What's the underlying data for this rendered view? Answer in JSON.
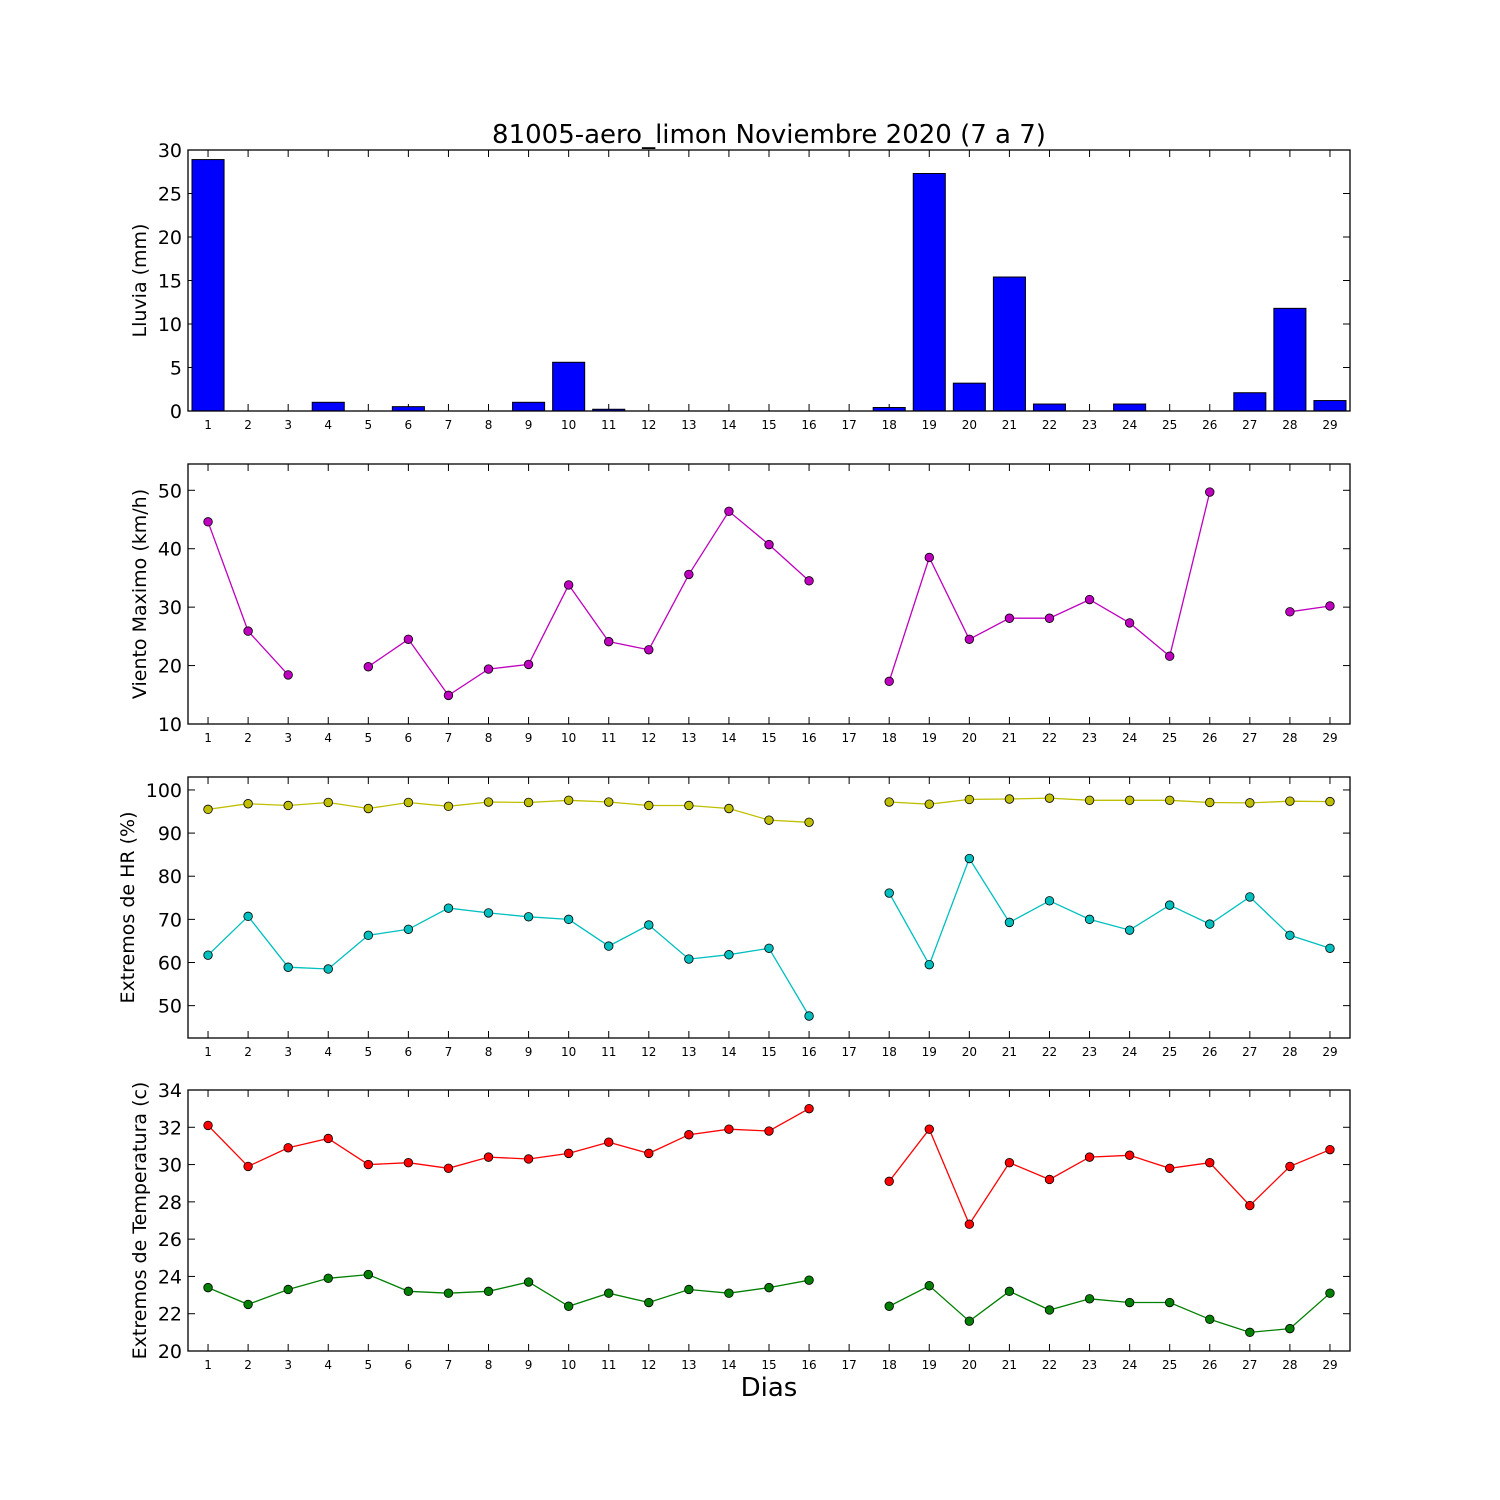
{
  "title": "81005-aero_limon Noviembre 2020  (7 a 7)",
  "xlabel": "Dias",
  "chart_data": [
    {
      "type": "bar",
      "ylabel": "Lluvia (mm)",
      "ylim": [
        0,
        30
      ],
      "yticks": [
        0,
        5,
        10,
        15,
        20,
        25,
        30
      ],
      "categories": [
        "1",
        "2",
        "3",
        "4",
        "5",
        "6",
        "7",
        "8",
        "9",
        "10",
        "11",
        "12",
        "13",
        "14",
        "15",
        "16",
        "17",
        "18",
        "19",
        "20",
        "21",
        "22",
        "23",
        "24",
        "25",
        "26",
        "27",
        "28",
        "29"
      ],
      "values": [
        28.9,
        0,
        0,
        1.0,
        0,
        0.5,
        0,
        0,
        1.0,
        5.6,
        0.2,
        0,
        0,
        0,
        0,
        0,
        0,
        0.4,
        27.3,
        3.2,
        15.4,
        0.8,
        0,
        0.8,
        0,
        0,
        2.1,
        11.8,
        1.2
      ],
      "color": "#0000ff"
    },
    {
      "type": "line",
      "ylabel": "Viento Maximo (km/h)",
      "ylim": [
        10,
        54.5
      ],
      "yticks": [
        10,
        20,
        30,
        40,
        50
      ],
      "x": [
        1,
        2,
        3,
        4,
        5,
        6,
        7,
        8,
        9,
        10,
        11,
        12,
        13,
        14,
        15,
        16,
        17,
        18,
        19,
        20,
        21,
        22,
        23,
        24,
        25,
        26,
        27,
        28,
        29
      ],
      "series": [
        {
          "color": "#bf00bf",
          "values": [
            44.6,
            25.9,
            18.4,
            null,
            19.8,
            24.5,
            14.9,
            19.4,
            20.2,
            33.8,
            24.1,
            22.7,
            35.6,
            46.4,
            40.7,
            34.5,
            null,
            17.3,
            38.5,
            24.5,
            28.1,
            28.1,
            31.3,
            27.3,
            21.6,
            49.7,
            null,
            29.2,
            30.2
          ]
        }
      ]
    },
    {
      "type": "line",
      "ylabel": "Extremos de HR (%)",
      "ylim": [
        42.5,
        103
      ],
      "yticks": [
        50,
        60,
        70,
        80,
        90,
        100
      ],
      "x": [
        1,
        2,
        3,
        4,
        5,
        6,
        7,
        8,
        9,
        10,
        11,
        12,
        13,
        14,
        15,
        16,
        17,
        18,
        19,
        20,
        21,
        22,
        23,
        24,
        25,
        26,
        27,
        28,
        29
      ],
      "series": [
        {
          "color": "#bfbf00",
          "values": [
            95.5,
            96.8,
            96.4,
            97.1,
            95.7,
            97.1,
            96.2,
            97.2,
            97.1,
            97.6,
            97.2,
            96.4,
            96.4,
            95.7,
            93.0,
            92.5,
            null,
            97.2,
            96.7,
            97.8,
            97.9,
            98.1,
            97.6,
            97.6,
            97.6,
            97.1,
            97.0,
            97.4,
            97.3
          ]
        },
        {
          "color": "#00bfbf",
          "values": [
            61.7,
            70.7,
            58.9,
            58.5,
            66.3,
            67.7,
            72.6,
            71.5,
            70.6,
            70.0,
            63.8,
            68.7,
            60.8,
            61.8,
            63.3,
            47.6,
            null,
            76.1,
            59.5,
            84.1,
            69.3,
            74.3,
            70.0,
            67.5,
            73.3,
            68.9,
            75.2,
            66.3,
            63.3
          ]
        }
      ]
    },
    {
      "type": "line",
      "ylabel": "Extremos de Temperatura (c)",
      "ylim": [
        20,
        34
      ],
      "yticks": [
        20,
        22,
        24,
        26,
        28,
        30,
        32,
        34
      ],
      "x": [
        1,
        2,
        3,
        4,
        5,
        6,
        7,
        8,
        9,
        10,
        11,
        12,
        13,
        14,
        15,
        16,
        17,
        18,
        19,
        20,
        21,
        22,
        23,
        24,
        25,
        26,
        27,
        28,
        29
      ],
      "series": [
        {
          "color": "#ff0000",
          "values": [
            32.1,
            29.9,
            30.9,
            31.4,
            30.0,
            30.1,
            29.8,
            30.4,
            30.3,
            30.6,
            31.2,
            30.6,
            31.6,
            31.9,
            31.8,
            33.0,
            null,
            29.1,
            31.9,
            26.8,
            30.1,
            29.2,
            30.4,
            30.5,
            29.8,
            30.1,
            27.8,
            29.9,
            30.8
          ]
        },
        {
          "color": "#008000",
          "values": [
            23.4,
            22.5,
            23.3,
            23.9,
            24.1,
            23.2,
            23.1,
            23.2,
            23.7,
            22.4,
            23.1,
            22.6,
            23.3,
            23.1,
            23.4,
            23.8,
            null,
            22.4,
            23.5,
            21.6,
            23.2,
            22.2,
            22.8,
            22.6,
            22.6,
            21.7,
            21.0,
            21.2,
            23.1
          ]
        }
      ]
    }
  ]
}
